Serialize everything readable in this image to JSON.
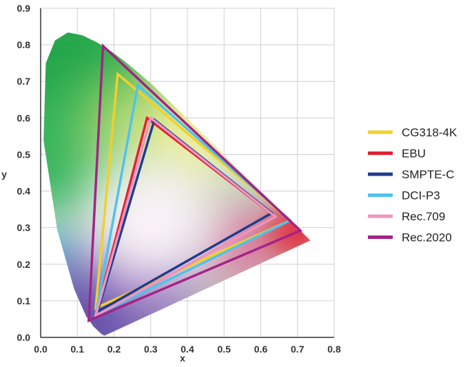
{
  "chart_data": {
    "type": "line",
    "title": "",
    "xlabel": "x",
    "ylabel": "y",
    "xlim": [
      0.0,
      0.8
    ],
    "ylim": [
      0.0,
      0.9
    ],
    "x_ticks": [
      "0.0",
      "0.1",
      "0.2",
      "0.3",
      "0.4",
      "0.5",
      "0.6",
      "0.7",
      "0.8"
    ],
    "y_ticks": [
      "0.0",
      "0.1",
      "0.2",
      "0.3",
      "0.4",
      "0.5",
      "0.6",
      "0.7",
      "0.8",
      "0.9"
    ],
    "grid": true,
    "legend_position": "right",
    "spectral_locus": {
      "x": [
        0.175,
        0.173,
        0.166,
        0.144,
        0.124,
        0.091,
        0.045,
        0.008,
        0.014,
        0.039,
        0.074,
        0.114,
        0.155,
        0.193,
        0.23,
        0.266,
        0.302,
        0.337,
        0.373,
        0.408,
        0.444,
        0.479,
        0.512,
        0.545,
        0.575,
        0.603,
        0.627,
        0.658,
        0.685,
        0.702,
        0.735,
        0.175
      ],
      "y": [
        0.005,
        0.005,
        0.009,
        0.03,
        0.058,
        0.133,
        0.295,
        0.538,
        0.75,
        0.812,
        0.834,
        0.826,
        0.806,
        0.782,
        0.754,
        0.724,
        0.693,
        0.659,
        0.624,
        0.589,
        0.555,
        0.52,
        0.487,
        0.454,
        0.424,
        0.397,
        0.373,
        0.341,
        0.315,
        0.298,
        0.265,
        0.005
      ]
    },
    "series": [
      {
        "name": "CG318-4K",
        "color": "#f2d02a",
        "x": [
          0.68,
          0.21,
          0.15
        ],
        "y": [
          0.32,
          0.72,
          0.08
        ]
      },
      {
        "name": "EBU",
        "color": "#e3212f",
        "x": [
          0.64,
          0.29,
          0.15
        ],
        "y": [
          0.33,
          0.6,
          0.06
        ]
      },
      {
        "name": "SMPTE-C",
        "color": "#1f3c8e",
        "x": [
          0.63,
          0.31,
          0.155
        ],
        "y": [
          0.34,
          0.595,
          0.07
        ]
      },
      {
        "name": "DCI-P3",
        "color": "#4fc3ea",
        "x": [
          0.68,
          0.265,
          0.15
        ],
        "y": [
          0.32,
          0.69,
          0.06
        ]
      },
      {
        "name": "Rec.709",
        "color": "#ec96c0",
        "x": [
          0.64,
          0.3,
          0.15
        ],
        "y": [
          0.33,
          0.6,
          0.06
        ]
      },
      {
        "name": "Rec.2020",
        "color": "#a32386",
        "x": [
          0.708,
          0.17,
          0.131
        ],
        "y": [
          0.292,
          0.797,
          0.046
        ]
      }
    ]
  }
}
